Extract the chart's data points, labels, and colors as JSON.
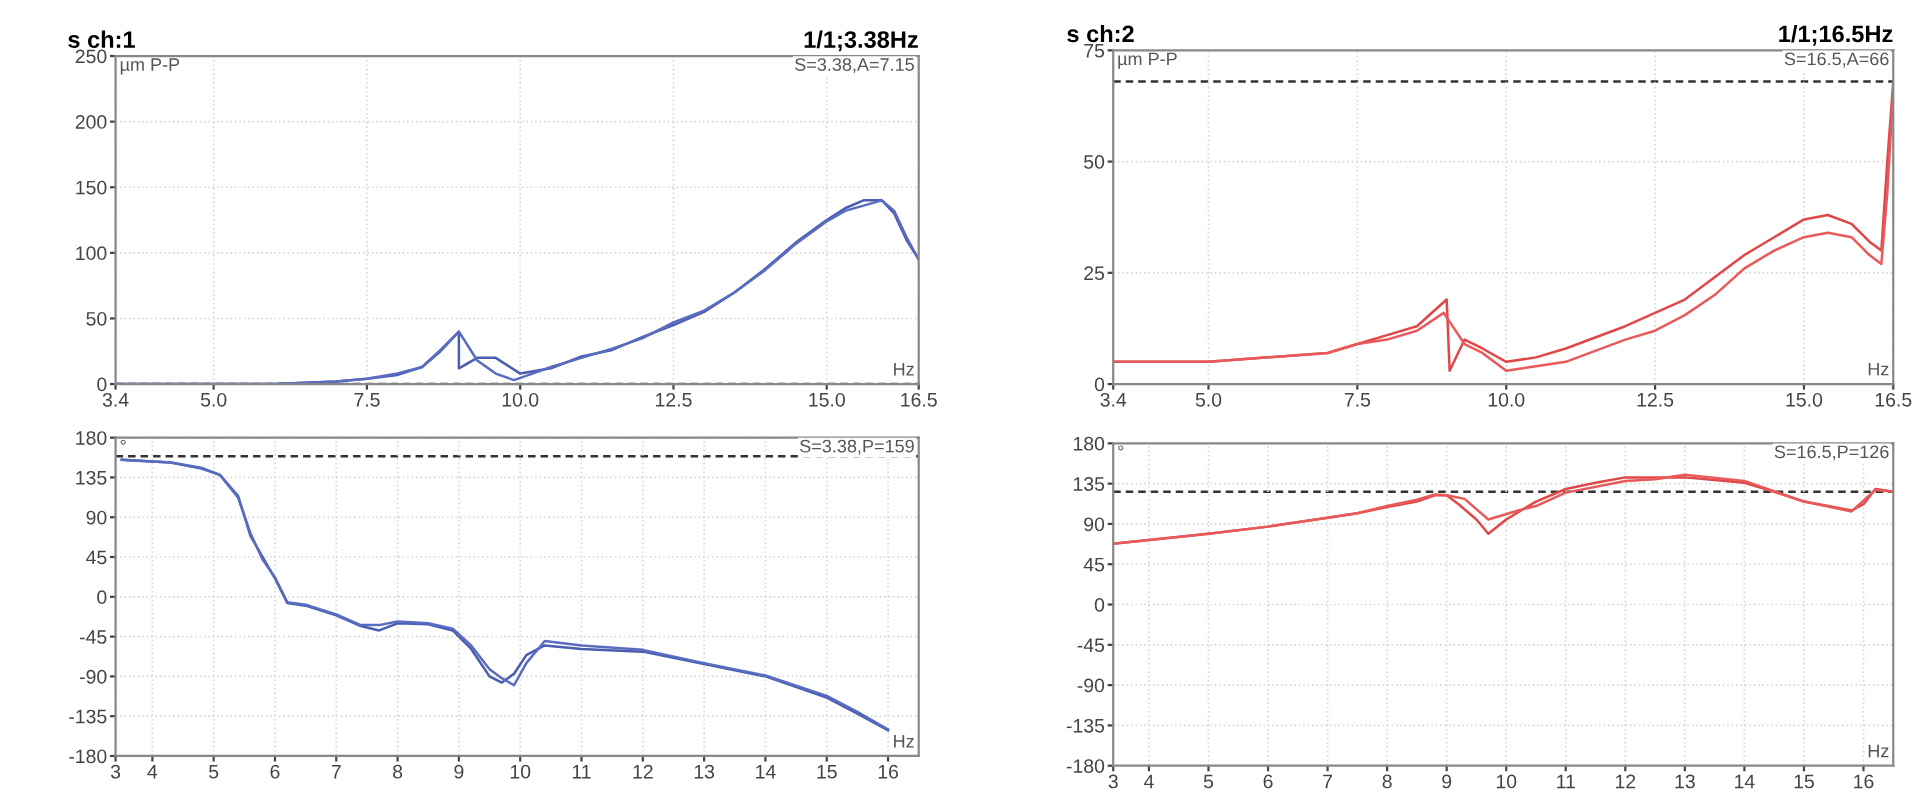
{
  "chart_data": [
    {
      "type": "line",
      "title": "s ch:1",
      "subtitle": "1/1;3.38Hz",
      "ylabel": "µm P-P",
      "xlabel": "Hz",
      "annotations": [
        "S=3.38,A=7.15"
      ],
      "xlim": [
        3.4,
        16.5
      ],
      "ylim": [
        0,
        250
      ],
      "xticks": [
        3.4,
        {
          "value": 5,
          "label": "5.0"
        },
        7.5,
        {
          "value": 10,
          "label": "10.0"
        },
        12.5,
        {
          "value": 15,
          "label": "15.0"
        },
        16.5
      ],
      "yticks": [
        0,
        50,
        100,
        150,
        200,
        250
      ],
      "grid": true,
      "marker": "none",
      "line_style": "solid",
      "ref_lines": [
        {
          "axis": "y",
          "value": 0,
          "color": "#333333",
          "line_style": "dashed"
        }
      ],
      "series": [
        {
          "color": "#4a5db0",
          "x": [
            3.4,
            5,
            6,
            7,
            7.5,
            8,
            8.4,
            8.7,
            9.0,
            9.0,
            9.3,
            9.6,
            10.0,
            10.5,
            11,
            11.5,
            12,
            12.5,
            13,
            13.5,
            14,
            14.5,
            15,
            15.3,
            15.6,
            15.9,
            16.1,
            16.3,
            16.5
          ],
          "values": [
            0,
            0,
            0,
            2,
            4,
            7,
            13,
            25,
            40,
            12,
            20,
            20,
            8,
            12,
            21,
            26,
            36,
            45,
            55,
            70,
            88,
            108,
            125,
            134,
            140,
            140,
            130,
            110,
            95
          ]
        },
        {
          "color": "#5a6cc0",
          "x": [
            3.4,
            5,
            6,
            7,
            7.5,
            8,
            8.4,
            8.7,
            9.0,
            9.3,
            9.6,
            9.9,
            10.2,
            10.5,
            11,
            11.5,
            12,
            12.5,
            13,
            13.5,
            14,
            14.5,
            15,
            15.3,
            15.6,
            15.9,
            16.1,
            16.3,
            16.5
          ],
          "values": [
            0,
            0,
            0,
            2,
            4,
            8,
            13,
            26,
            40,
            18,
            8,
            3,
            8,
            13,
            20,
            27,
            35,
            47,
            56,
            70,
            87,
            107,
            124,
            132,
            136,
            140,
            132,
            112,
            95
          ]
        }
      ]
    },
    {
      "type": "line",
      "ylabel": "°",
      "xlabel": "Hz",
      "annotations": [
        "S=3.38,P=159"
      ],
      "xlim": [
        3.4,
        16.5
      ],
      "ylim": [
        -180,
        180
      ],
      "xticks": [
        {
          "value": 3.4,
          "label": "3"
        },
        4,
        5,
        6,
        7,
        8,
        9,
        10,
        11,
        12,
        13,
        14,
        15,
        16
      ],
      "yticks": [
        180,
        135,
        90,
        45,
        0,
        -45,
        -90,
        -135,
        -180
      ],
      "grid": true,
      "marker": "none",
      "line_style": "solid",
      "ref_lines": [
        {
          "axis": "y",
          "value": 159,
          "color": "#333333",
          "line_style": "dashed"
        }
      ],
      "series": [
        {
          "color": "#4a5db0",
          "x": [
            3.5,
            4.3,
            4.8,
            5.1,
            5.4,
            5.6,
            5.8,
            6.0,
            6.2,
            6.5,
            7.0,
            7.4,
            7.7,
            8.0,
            8.5,
            8.9,
            9.2,
            9.5,
            9.7,
            9.9,
            10.1,
            10.4,
            11,
            12,
            13,
            14,
            15,
            15.5,
            16.0
          ],
          "values": [
            155,
            152,
            145,
            138,
            114,
            69,
            45,
            21,
            -7,
            -10,
            -21,
            -33,
            -38,
            -30,
            -31,
            -38,
            -59,
            -90,
            -97,
            -87,
            -66,
            -55,
            -59,
            -62,
            -76,
            -90,
            -114,
            -132,
            -151
          ]
        },
        {
          "color": "#5a6cc0",
          "x": [
            3.5,
            4.3,
            4.8,
            5.1,
            5.4,
            5.6,
            5.8,
            6.0,
            6.2,
            6.5,
            7.0,
            7.4,
            7.7,
            8.0,
            8.5,
            8.9,
            9.2,
            9.5,
            9.7,
            9.9,
            10.1,
            10.4,
            11,
            12,
            13,
            14,
            15,
            15.5,
            16.0
          ],
          "values": [
            155,
            152,
            146,
            138,
            112,
            72,
            42,
            22,
            -6,
            -9,
            -20,
            -32,
            -32,
            -28,
            -30,
            -36,
            -55,
            -82,
            -92,
            -100,
            -75,
            -50,
            -55,
            -60,
            -75,
            -89,
            -112,
            -130,
            -150
          ]
        }
      ]
    },
    {
      "type": "line",
      "title": "s ch:2",
      "subtitle": "1/1;16.5Hz",
      "ylabel": "µm P-P",
      "xlabel": "Hz",
      "annotations": [
        "S=16.5,A=66"
      ],
      "xlim": [
        3.4,
        16.5
      ],
      "ylim": [
        0,
        75
      ],
      "xticks": [
        3.4,
        {
          "value": 5,
          "label": "5.0"
        },
        7.5,
        {
          "value": 10,
          "label": "10.0"
        },
        12.5,
        {
          "value": 15,
          "label": "15.0"
        },
        16.5
      ],
      "yticks": [
        0,
        25,
        50,
        75
      ],
      "grid": true,
      "marker": "none",
      "line_style": "solid",
      "ref_lines": [
        {
          "axis": "y",
          "value": 68,
          "color": "#333333",
          "line_style": "dashed"
        }
      ],
      "series": [
        {
          "color": "#e04848",
          "x": [
            3.4,
            5,
            7,
            7.5,
            8,
            8.5,
            9.0,
            9.05,
            9.3,
            9.6,
            10,
            10.5,
            11,
            12,
            12.5,
            13,
            13.5,
            14,
            14.5,
            15,
            15.4,
            15.8,
            16.1,
            16.3,
            16.4,
            16.5
          ],
          "values": [
            5,
            5,
            7,
            9,
            11,
            13,
            19,
            3,
            10,
            8,
            5,
            6,
            8,
            13,
            16,
            19,
            24,
            29,
            33,
            37,
            38,
            36,
            32,
            30,
            50,
            68
          ]
        },
        {
          "color": "#e85a5a",
          "x": [
            3.4,
            5,
            7,
            7.5,
            8,
            8.5,
            8.95,
            9.0,
            9.3,
            9.6,
            10,
            10.5,
            11,
            12,
            12.5,
            13,
            13.5,
            14,
            14.5,
            15,
            15.4,
            15.8,
            16.1,
            16.3,
            16.4,
            16.5
          ],
          "values": [
            5,
            5,
            7,
            9,
            10,
            12,
            16,
            15,
            9,
            7,
            3,
            4,
            5,
            10,
            12,
            15.5,
            20,
            26,
            30,
            33,
            34,
            33,
            29,
            27,
            43,
            66
          ]
        }
      ]
    },
    {
      "type": "line",
      "ylabel": "°",
      "xlabel": "Hz",
      "annotations": [
        "S=16.5,P=126"
      ],
      "xlim": [
        3.4,
        16.5
      ],
      "ylim": [
        -180,
        180
      ],
      "xticks": [
        {
          "value": 3.4,
          "label": "3"
        },
        4,
        5,
        6,
        7,
        8,
        9,
        10,
        11,
        12,
        13,
        14,
        15,
        16
      ],
      "yticks": [
        180,
        135,
        90,
        45,
        0,
        -45,
        -90,
        -135,
        -180
      ],
      "grid": true,
      "marker": "none",
      "line_style": "solid",
      "ref_lines": [
        {
          "axis": "y",
          "value": 126,
          "color": "#333333",
          "line_style": "dashed"
        }
      ],
      "series": [
        {
          "color": "#e04848",
          "x": [
            3.4,
            5,
            6,
            7,
            7.5,
            8,
            8.5,
            8.8,
            9.0,
            9.2,
            9.5,
            9.7,
            10.0,
            10.5,
            11,
            11.5,
            12,
            13,
            13.5,
            14,
            14.5,
            15,
            15.5,
            15.8,
            16.0,
            16.2,
            16.5
          ],
          "values": [
            68,
            79,
            87,
            97,
            102,
            109,
            115,
            122,
            122,
            112,
            95,
            79,
            95,
            115,
            129,
            136,
            142,
            142,
            139,
            136,
            126,
            115,
            109,
            105,
            112,
            129,
            126
          ]
        },
        {
          "color": "#e85a5a",
          "x": [
            3.4,
            5,
            6,
            7,
            7.5,
            8,
            8.5,
            8.8,
            9.0,
            9.3,
            9.7,
            10.2,
            10.5,
            11,
            12,
            12.5,
            13,
            14,
            15,
            15.8,
            16.2,
            16.5
          ],
          "values": [
            68,
            79,
            87,
            97,
            102,
            110,
            117,
            123,
            122,
            118,
            95,
            105,
            110,
            125,
            138,
            140,
            145,
            138,
            115,
            104,
            128,
            126
          ]
        }
      ]
    }
  ]
}
